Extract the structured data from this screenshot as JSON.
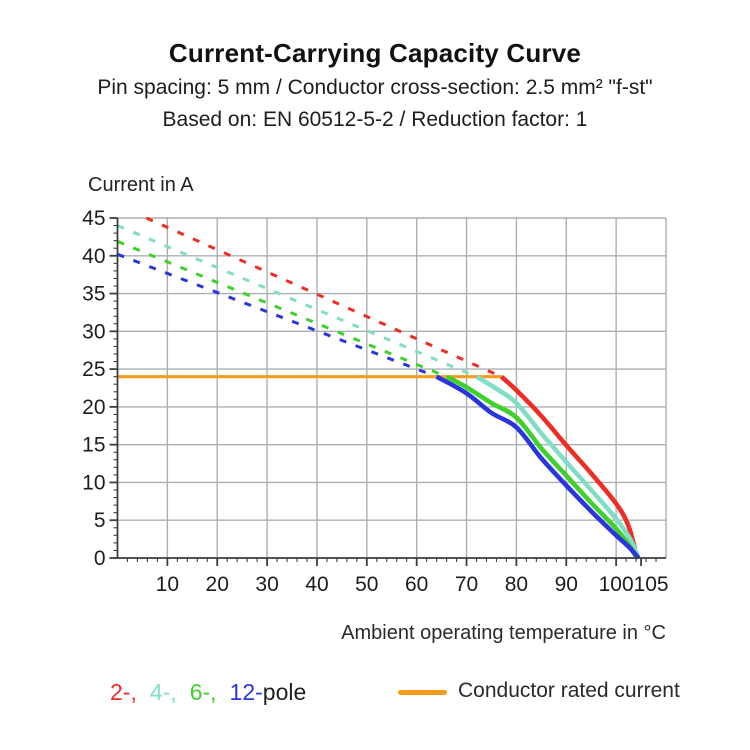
{
  "header": {
    "title": "Current-Carrying Capacity Curve",
    "subtitle1": "Pin spacing: 5 mm / Conductor cross-section: 2.5 mm² \"f-st\"",
    "subtitle2": "Based on: EN 60512-5-2 / Reduction factor: 1"
  },
  "colors": {
    "red": "#ee2e24",
    "cyan": "#80dec6",
    "green": "#3ed02b",
    "blue": "#2a36dd",
    "orange": "#f89c1e",
    "grid": "#a9b0b4",
    "axis": "#3a3f44",
    "text": "#1d1d1f"
  },
  "chart_data": {
    "type": "line",
    "title": "Current-Carrying Capacity Curve",
    "xlabel": "Ambient operating temperature in °C",
    "ylabel": "Current in A",
    "xlim": [
      0,
      110
    ],
    "ylim": [
      0,
      45
    ],
    "x_major_ticks": [
      10,
      20,
      30,
      40,
      50,
      60,
      70,
      80,
      90,
      100,
      105
    ],
    "x_minor_step": 2,
    "y_major_ticks": [
      0,
      5,
      10,
      15,
      20,
      25,
      30,
      35,
      40,
      45
    ],
    "y_minor_step": 1,
    "grid": {
      "x_step": 10,
      "y_step": 5,
      "color": "#a9b0b4"
    },
    "conductor_rated_current_A": 24,
    "series": [
      {
        "id": "curve-2-pole-derated",
        "name": "2-pole derating (dashed)",
        "color": "#ee2e24",
        "style": "dashed",
        "width": 3,
        "points": [
          [
            5.8,
            45
          ],
          [
            77,
            24
          ]
        ]
      },
      {
        "id": "curve-4-pole-derated",
        "name": "4-pole derating (dashed)",
        "color": "#80dec6",
        "style": "dashed",
        "width": 3,
        "points": [
          [
            0,
            44
          ],
          [
            72,
            24
          ]
        ]
      },
      {
        "id": "curve-6-pole-derated",
        "name": "6-pole derating (dashed)",
        "color": "#3ed02b",
        "style": "dashed",
        "width": 3,
        "points": [
          [
            0,
            41.9
          ],
          [
            66,
            24
          ]
        ]
      },
      {
        "id": "curve-12-pole-derated",
        "name": "12-pole derating (dashed)",
        "color": "#2a36dd",
        "style": "dashed",
        "width": 3,
        "points": [
          [
            0,
            40.2
          ],
          [
            64,
            24
          ]
        ]
      },
      {
        "id": "rated-current-line",
        "name": "Conductor rated current",
        "color": "#f89c1e",
        "style": "solid",
        "width": 3.2,
        "points": [
          [
            0,
            24
          ],
          [
            77,
            24
          ]
        ]
      },
      {
        "id": "curve-2-pole",
        "name": "2-pole capacity",
        "color": "#ee2e24",
        "style": "solid",
        "width": 4.6,
        "points": [
          [
            77,
            24
          ],
          [
            80,
            22.2
          ],
          [
            85,
            18.8
          ],
          [
            90,
            14.9
          ],
          [
            95,
            11.2
          ],
          [
            100,
            7.2
          ],
          [
            102.5,
            4.2
          ],
          [
            104.2,
            0
          ]
        ]
      },
      {
        "id": "curve-4-pole",
        "name": "4-pole capacity",
        "color": "#80dec6",
        "style": "solid",
        "width": 4.6,
        "points": [
          [
            72,
            24
          ],
          [
            76,
            22.4
          ],
          [
            80,
            20.5
          ],
          [
            85,
            16.5
          ],
          [
            90,
            12.7
          ],
          [
            95,
            9.0
          ],
          [
            100,
            5.2
          ],
          [
            103,
            2.3
          ],
          [
            104.4,
            0
          ]
        ]
      },
      {
        "id": "curve-6-pole",
        "name": "6-pole capacity",
        "color": "#3ed02b",
        "style": "solid",
        "width": 4.6,
        "points": [
          [
            66,
            24
          ],
          [
            70,
            22.6
          ],
          [
            75,
            20.5
          ],
          [
            80,
            18.6
          ],
          [
            85,
            14.5
          ],
          [
            90,
            10.9
          ],
          [
            95,
            7.3
          ],
          [
            100,
            3.9
          ],
          [
            102.5,
            1.8
          ],
          [
            104.1,
            0
          ]
        ]
      },
      {
        "id": "curve-12-pole",
        "name": "12-pole capacity",
        "color": "#2a36dd",
        "style": "solid",
        "width": 4.6,
        "points": [
          [
            64,
            24
          ],
          [
            70,
            21.8
          ],
          [
            75,
            19.2
          ],
          [
            80,
            17.3
          ],
          [
            85,
            13.2
          ],
          [
            90,
            9.6
          ],
          [
            95,
            6.2
          ],
          [
            100,
            3.0
          ],
          [
            102.5,
            1.5
          ],
          [
            104.5,
            0
          ]
        ]
      }
    ],
    "legend_position": "bottom"
  },
  "legend": {
    "pole_items": [
      {
        "label": "2-,",
        "color": "#ee2e24"
      },
      {
        "label": "4-,",
        "color": "#80dec6"
      },
      {
        "label": "6-,",
        "color": "#3ed02b"
      },
      {
        "label": "12-",
        "color": "#2a36dd"
      }
    ],
    "pole_suffix": "pole",
    "rated": {
      "label": "Conductor rated current",
      "color": "#f89c1e"
    }
  }
}
